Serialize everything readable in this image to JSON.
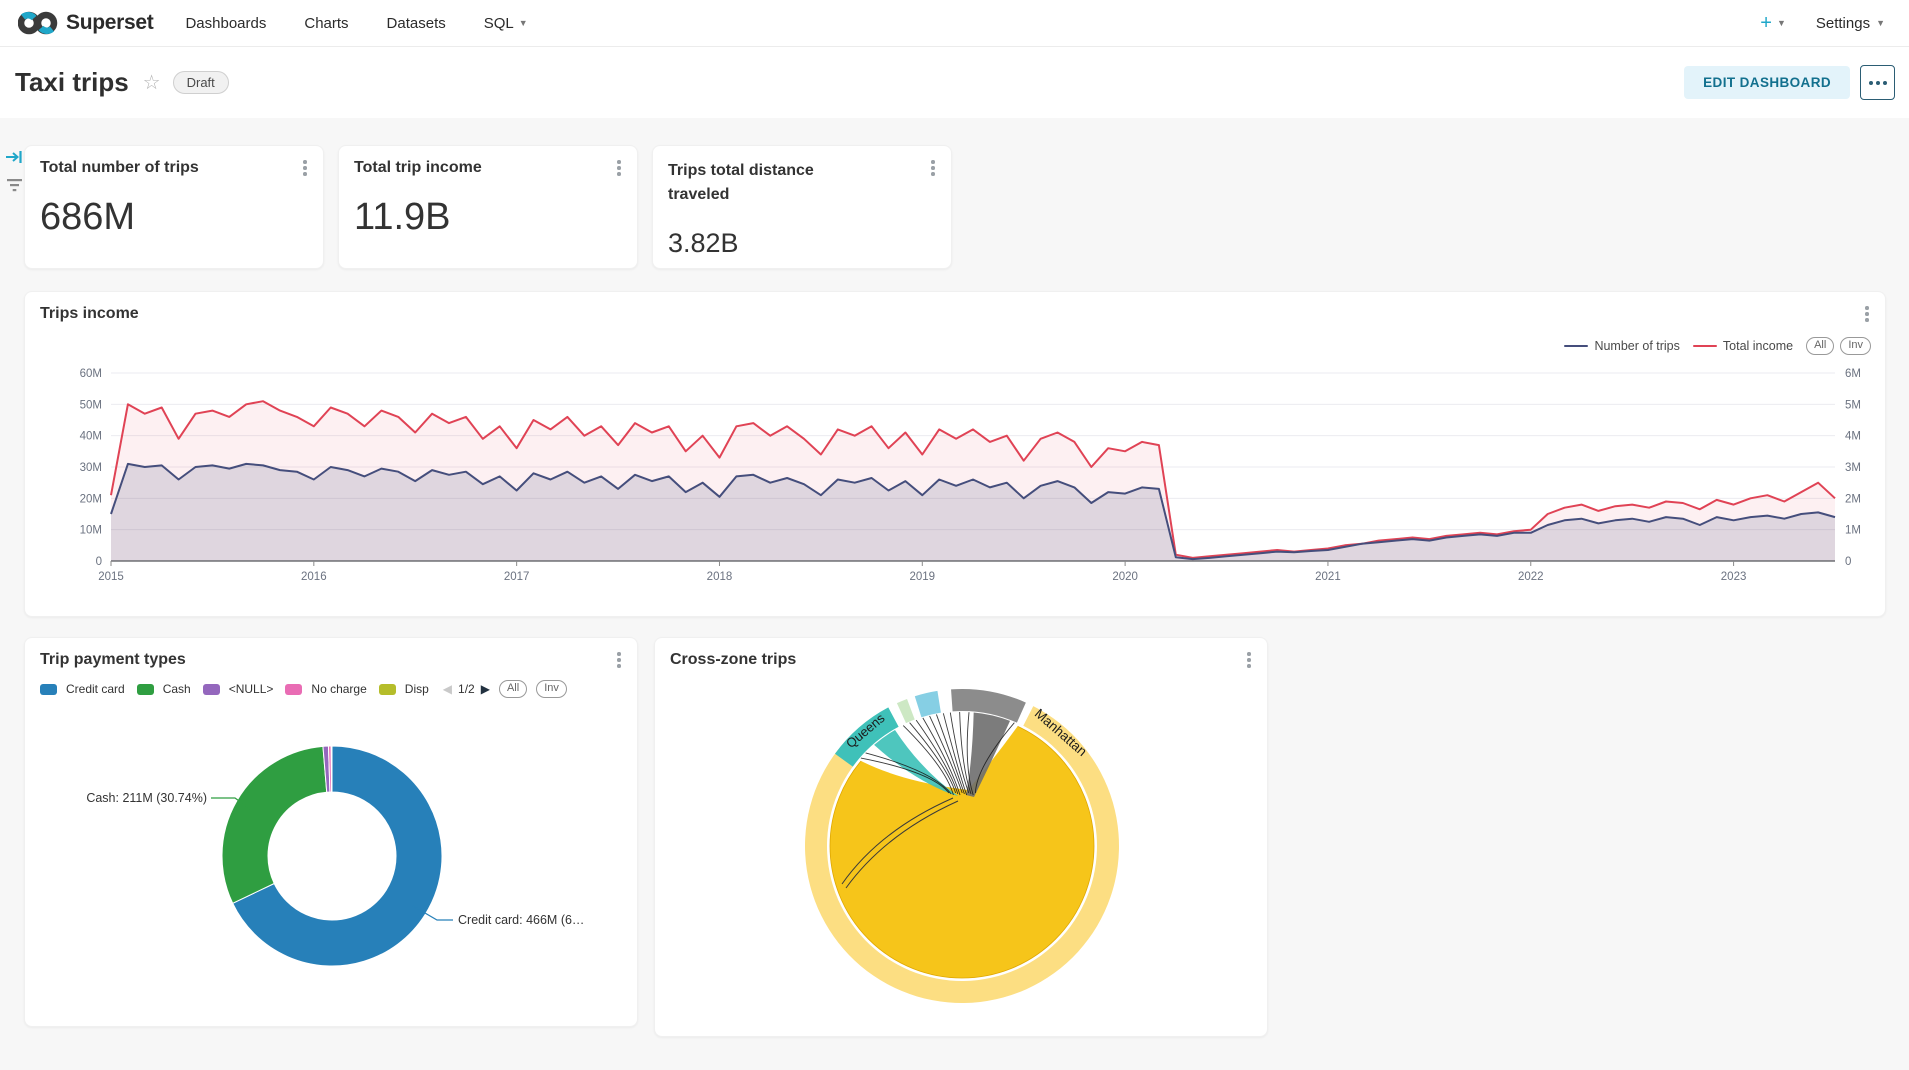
{
  "nav": {
    "brand": "Superset",
    "items": [
      {
        "label": "Dashboards"
      },
      {
        "label": "Charts"
      },
      {
        "label": "Datasets"
      },
      {
        "label": "SQL"
      }
    ],
    "new_button": "+",
    "settings_label": "Settings"
  },
  "header": {
    "title": "Taxi trips",
    "status_badge": "Draft",
    "edit_button": "EDIT DASHBOARD"
  },
  "kpis": [
    {
      "title": "Total number of trips",
      "value": "686M"
    },
    {
      "title": "Total trip income",
      "value": "11.9B"
    },
    {
      "title": "Trips total distance traveled",
      "value": "3.82B"
    }
  ],
  "trips_income_card": {
    "title": "Trips income",
    "legend": [
      {
        "label": "Number of trips",
        "color": "#454e7c"
      },
      {
        "label": "Total income",
        "color": "#e04355"
      }
    ],
    "zoom_buttons": [
      "All",
      "Inv"
    ]
  },
  "payment_card": {
    "title": "Trip payment types",
    "legend": [
      {
        "label": "Credit card",
        "color": "#2780b9"
      },
      {
        "label": "Cash",
        "color": "#2f9e41"
      },
      {
        "label": "<NULL>",
        "color": "#9467bd"
      },
      {
        "label": "No charge",
        "color": "#e96cb4"
      },
      {
        "label": "Disp",
        "color": "#b5bd2a"
      }
    ],
    "pager": "1/2",
    "zoom_buttons": [
      "All",
      "Inv"
    ],
    "callouts": [
      {
        "text": "Cash: 211M (30.74%)",
        "color": "#2f9e41"
      },
      {
        "text": "Credit card: 466M (6…",
        "color": "#2780b9"
      }
    ]
  },
  "crosszone_card": {
    "title": "Cross-zone trips",
    "labels": [
      "Queens",
      "Manhattan"
    ]
  },
  "chart_data": [
    {
      "type": "line",
      "title": "Trips income",
      "x_start": 2015,
      "x_step_months": 1,
      "x_domain": [
        2015,
        2023.5
      ],
      "x_tick_labels": [
        "2015",
        "2016",
        "2017",
        "2018",
        "2019",
        "2020",
        "2021",
        "2022",
        "2023"
      ],
      "left_axis": {
        "label": "Total income",
        "ticks": [
          "60M",
          "50M",
          "40M",
          "30M",
          "20M",
          "10M",
          "0"
        ],
        "range": [
          0,
          60
        ]
      },
      "right_axis": {
        "label": "Number of trips",
        "ticks": [
          "6M",
          "5M",
          "4M",
          "3M",
          "2M",
          "1M",
          "0"
        ],
        "range": [
          0,
          6
        ]
      },
      "grid": true,
      "legend_position": "top-right",
      "series": [
        {
          "name": "Total income",
          "axis": "left",
          "color": "#e04355",
          "fill": "rgba(224,67,85,0.08)",
          "values": [
            21,
            50,
            47,
            49,
            39,
            47,
            48,
            46,
            50,
            51,
            48,
            46,
            43,
            49,
            47,
            43,
            48,
            46,
            41,
            47,
            44,
            46,
            39,
            43,
            36,
            45,
            42,
            46,
            40,
            43,
            37,
            44,
            41,
            43,
            35,
            40,
            33,
            43,
            44,
            40,
            43,
            39,
            34,
            42,
            40,
            43,
            36,
            41,
            34,
            42,
            39,
            42,
            38,
            40,
            32,
            39,
            41,
            38,
            30,
            36,
            35,
            38,
            37,
            2,
            1,
            1.5,
            2,
            2.5,
            3,
            3.5,
            3,
            3.5,
            4,
            5,
            5.5,
            6.5,
            7,
            7.5,
            7,
            8,
            8.5,
            9,
            8.5,
            9.5,
            10,
            15,
            17,
            18,
            16,
            17.5,
            18,
            17,
            19,
            18.5,
            16.5,
            19.5,
            18,
            20,
            21,
            19,
            22,
            25,
            20
          ]
        },
        {
          "name": "Number of trips",
          "axis": "right",
          "color": "#454e7c",
          "fill": "rgba(69,78,124,0.16)",
          "values": [
            1.5,
            3.1,
            3.0,
            3.05,
            2.6,
            3.0,
            3.05,
            2.95,
            3.1,
            3.05,
            2.9,
            2.85,
            2.6,
            3.0,
            2.9,
            2.7,
            2.95,
            2.85,
            2.55,
            2.9,
            2.75,
            2.85,
            2.45,
            2.7,
            2.25,
            2.8,
            2.6,
            2.85,
            2.5,
            2.7,
            2.3,
            2.75,
            2.55,
            2.7,
            2.2,
            2.5,
            2.05,
            2.7,
            2.75,
            2.5,
            2.65,
            2.45,
            2.1,
            2.6,
            2.5,
            2.65,
            2.25,
            2.55,
            2.1,
            2.6,
            2.4,
            2.6,
            2.35,
            2.5,
            2.0,
            2.4,
            2.55,
            2.35,
            1.85,
            2.2,
            2.15,
            2.35,
            2.3,
            0.12,
            0.06,
            0.1,
            0.15,
            0.2,
            0.25,
            0.3,
            0.28,
            0.32,
            0.35,
            0.45,
            0.55,
            0.6,
            0.65,
            0.7,
            0.65,
            0.75,
            0.8,
            0.85,
            0.8,
            0.9,
            0.9,
            1.15,
            1.3,
            1.35,
            1.2,
            1.3,
            1.35,
            1.25,
            1.4,
            1.35,
            1.15,
            1.4,
            1.3,
            1.4,
            1.45,
            1.35,
            1.5,
            1.55,
            1.4
          ]
        }
      ]
    },
    {
      "type": "pie",
      "title": "Trip payment types",
      "donut": true,
      "categories": [
        "Credit card",
        "Cash",
        "<NULL>",
        "No charge",
        "Disputed"
      ],
      "values_M": [
        466,
        211,
        5.5,
        2.7,
        0.8
      ],
      "percents": [
        67.93,
        30.74,
        0.8,
        0.39,
        0.12
      ],
      "colors": [
        "#2780b9",
        "#2f9e41",
        "#9467bd",
        "#e96cb4",
        "#b5bd2a"
      ],
      "visible_labels": [
        "Cash: 211M (30.74%)",
        "Credit card: 466M (6…"
      ]
    },
    {
      "type": "chord",
      "title": "Cross-zone trips",
      "zones": [
        {
          "name": "Manhattan",
          "color": "#fcde82",
          "arc_deg": [
            27,
            308
          ]
        },
        {
          "name": "Queens",
          "color": "#3fc1b9",
          "arc_deg": [
            -54,
            -28
          ]
        },
        {
          "name": "zone-green",
          "color": "#cde8c4",
          "arc_deg": [
            -24.5,
            -20.5
          ]
        },
        {
          "name": "zone-blue",
          "color": "#86cfe4",
          "arc_deg": [
            -17.5,
            -9
          ]
        },
        {
          "name": "zone-gray",
          "color": "#8c8c8c",
          "arc_deg": [
            -4,
            24
          ]
        }
      ],
      "dominant_flow": "Manhattan-Manhattan",
      "dominant_color": "#f6c51a"
    }
  ]
}
